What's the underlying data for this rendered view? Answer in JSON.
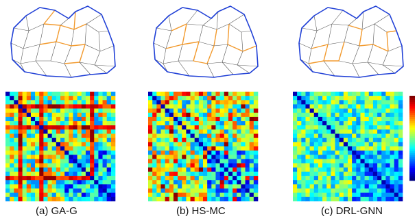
{
  "captions": {
    "a": "(a) GA-G",
    "b": "(b) HS-MC",
    "c": "(c) DRL-GNN"
  },
  "colors": {
    "boundary": "#1f3fd6",
    "highlight": "#f29a2e",
    "interior": "#555555",
    "colormap": "jet"
  },
  "panels": [
    {
      "id": "a",
      "method": "GA-G"
    },
    {
      "id": "b",
      "method": "HS-MC"
    },
    {
      "id": "c",
      "method": "DRL-GNN"
    }
  ]
}
